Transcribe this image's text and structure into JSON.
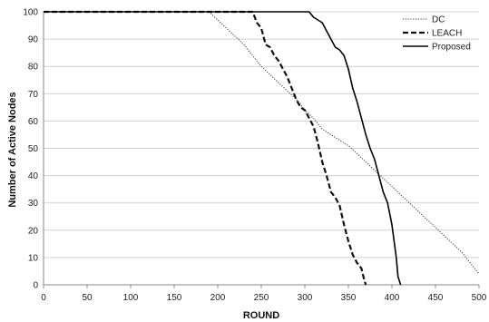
{
  "chart_data": {
    "type": "line",
    "title": "",
    "xlabel": "ROUND",
    "ylabel": "Number of Active Nodes",
    "xlim": [
      0,
      500
    ],
    "ylim": [
      0,
      100
    ],
    "x_ticks": [
      0,
      50,
      100,
      150,
      200,
      250,
      300,
      350,
      400,
      450,
      500
    ],
    "y_ticks": [
      0,
      10,
      20,
      30,
      40,
      50,
      60,
      70,
      80,
      90,
      100
    ],
    "grid": "horizontal",
    "legend_position": "top-right",
    "series": [
      {
        "name": "DC",
        "style": "dotted",
        "color": "#444444",
        "x": [
          0,
          190,
          200,
          210,
          220,
          230,
          240,
          250,
          260,
          270,
          280,
          290,
          300,
          310,
          320,
          330,
          340,
          350,
          360,
          370,
          380,
          390,
          400,
          410,
          420,
          430,
          440,
          450,
          460,
          470,
          480,
          490,
          500
        ],
        "y": [
          100,
          100,
          97,
          94,
          91,
          88,
          84,
          80,
          77,
          74,
          71,
          68,
          64,
          61,
          57,
          55,
          53,
          51,
          48,
          45,
          42,
          39,
          36,
          33,
          30,
          27,
          24,
          21,
          18,
          15,
          12,
          8,
          4
        ]
      },
      {
        "name": "LEACH",
        "style": "dashed",
        "color": "#111111",
        "x": [
          0,
          240,
          245,
          250,
          255,
          260,
          265,
          270,
          275,
          280,
          285,
          290,
          295,
          300,
          305,
          310,
          315,
          320,
          325,
          330,
          335,
          340,
          345,
          350,
          355,
          360,
          365,
          368,
          370
        ],
        "y": [
          100,
          100,
          96,
          94,
          88,
          87,
          84,
          82,
          79,
          76,
          72,
          68,
          65,
          64,
          61,
          58,
          52,
          45,
          40,
          34,
          32,
          29,
          22,
          16,
          11,
          8,
          6,
          2,
          0
        ]
      },
      {
        "name": "Proposed",
        "style": "solid",
        "color": "#000000",
        "x": [
          0,
          305,
          310,
          315,
          320,
          325,
          330,
          335,
          340,
          345,
          350,
          355,
          360,
          365,
          370,
          375,
          380,
          385,
          390,
          395,
          400,
          405,
          407,
          410
        ],
        "y": [
          100,
          100,
          98,
          97,
          96,
          93,
          90,
          87,
          86,
          84,
          79,
          72,
          67,
          61,
          55,
          50,
          46,
          40,
          34,
          30,
          22,
          10,
          3,
          0
        ]
      }
    ]
  }
}
